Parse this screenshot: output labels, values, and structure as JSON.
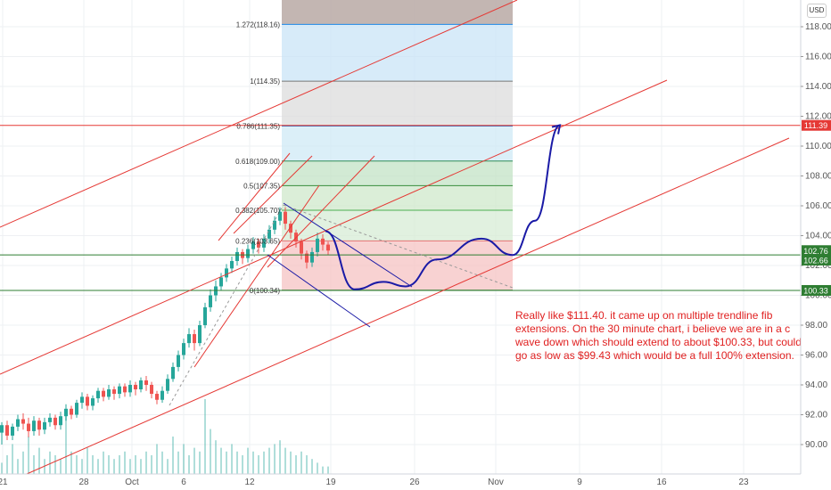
{
  "currency": "USD",
  "note_lines": [
    "Really like $111.40. it came up on multiple trendline fib",
    "extensions. On the 30 minute chart, i believe we are in a c",
    "wave down which should extend to about $100.33, but could",
    "go as low as $99.43 which would be a full 100% extension."
  ],
  "colors": {
    "red": "#e53935",
    "green": "#2e7d32",
    "blue": "#1a1aa6",
    "grid": "#eef0f3",
    "candle_up": "#26a69a",
    "candle_down": "#ef5350"
  },
  "chart_data": {
    "type": "candlestick",
    "y_range": [
      88.5,
      119.5
    ],
    "y_ticks": [
      90,
      92,
      94,
      96,
      98,
      100,
      102,
      104,
      106,
      108,
      110,
      112,
      114,
      116,
      118
    ],
    "y_tick_labels": [
      "90.00",
      "92.00",
      "94.00",
      "96.00",
      "98.00",
      "100.00",
      "102.00",
      "104.00",
      "106.00",
      "108.00",
      "110.00",
      "112.00",
      "114.00",
      "116.00",
      "118.00"
    ],
    "x_ticks": [
      "21",
      "28",
      "Oct",
      "6",
      "12",
      "19",
      "26",
      "Nov",
      "9",
      "16",
      "23"
    ],
    "price_labels": [
      {
        "label": "111.39",
        "value": 111.39,
        "color": "#e53935"
      },
      {
        "label": "102.76",
        "value": 102.76,
        "color": "#2e7d32"
      },
      {
        "label": "102.66",
        "value": 102.66,
        "color": "#2e7d32"
      },
      {
        "label": "100.33",
        "value": 100.33,
        "color": "#2e7d32"
      }
    ],
    "fib_levels": [
      {
        "label": "0(100.34)",
        "value": 100.34,
        "fill": "#f6c3c3"
      },
      {
        "label": "0.236(103.65)",
        "value": 103.65,
        "fill": "#d7ecd5"
      },
      {
        "label": "0.382(105.70)",
        "value": 105.7,
        "fill": "#cfe8cb"
      },
      {
        "label": "0.5(107.35)",
        "value": 107.35,
        "fill": "#c3e3c5"
      },
      {
        "label": "0.618(109.00)",
        "value": 109.0,
        "fill": "#cfe9f6"
      },
      {
        "label": "0.786(111.35)",
        "value": 111.35,
        "fill": "#dcdcdc"
      },
      {
        "label": "1(114.35)",
        "value": 114.35,
        "fill": "#c9e4f7"
      },
      {
        "label": "1.272(118.16)",
        "value": 118.16,
        "fill": "#c7b9b5"
      }
    ],
    "projection_path": [
      [
        365,
        104.3
      ],
      [
        398,
        100.4
      ],
      [
        430,
        100.9
      ],
      [
        455,
        100.6
      ],
      [
        490,
        102.4
      ],
      [
        540,
        103.8
      ],
      [
        575,
        102.7
      ],
      [
        600,
        105
      ],
      [
        628,
        111.4
      ]
    ],
    "candles": [
      [
        2,
        90.8,
        91.3,
        90.0,
        91.5
      ],
      [
        8,
        91.3,
        90.6,
        90.3,
        91.6
      ],
      [
        14,
        90.6,
        91.2,
        90.3,
        91.4
      ],
      [
        20,
        91.2,
        91.7,
        90.9,
        92.0
      ],
      [
        26,
        91.7,
        91.4,
        91.0,
        92.1
      ],
      [
        32,
        91.4,
        90.9,
        90.5,
        91.8
      ],
      [
        38,
        90.9,
        91.6,
        90.6,
        91.9
      ],
      [
        44,
        91.6,
        91.0,
        90.6,
        91.8
      ],
      [
        50,
        91.0,
        91.5,
        90.7,
        91.8
      ],
      [
        56,
        91.5,
        91.8,
        91.2,
        92.1
      ],
      [
        62,
        91.8,
        91.3,
        91.0,
        92.0
      ],
      [
        68,
        91.3,
        91.9,
        91.0,
        92.2
      ],
      [
        74,
        91.9,
        92.4,
        91.6,
        92.7
      ],
      [
        80,
        92.4,
        92.0,
        91.7,
        92.6
      ],
      [
        86,
        92.0,
        92.8,
        91.8,
        93.0
      ],
      [
        92,
        92.8,
        93.2,
        92.4,
        93.5
      ],
      [
        98,
        93.2,
        92.6,
        92.3,
        93.4
      ],
      [
        104,
        92.6,
        93.1,
        92.3,
        93.3
      ],
      [
        110,
        93.1,
        93.6,
        92.8,
        93.8
      ],
      [
        116,
        93.6,
        93.2,
        92.9,
        93.8
      ],
      [
        122,
        93.2,
        93.7,
        93.0,
        94.0
      ],
      [
        128,
        93.7,
        93.4,
        93.0,
        93.9
      ],
      [
        134,
        93.4,
        93.9,
        93.1,
        94.1
      ],
      [
        140,
        93.9,
        93.5,
        93.2,
        94.1
      ],
      [
        146,
        93.5,
        94.0,
        93.2,
        94.3
      ],
      [
        152,
        94.0,
        93.7,
        93.3,
        94.2
      ],
      [
        158,
        93.7,
        94.3,
        93.5,
        94.5
      ],
      [
        164,
        94.3,
        94.0,
        93.6,
        94.6
      ],
      [
        170,
        94.0,
        93.4,
        93.1,
        94.2
      ],
      [
        176,
        93.4,
        93.0,
        92.7,
        93.6
      ],
      [
        182,
        93.0,
        93.6,
        92.8,
        93.9
      ],
      [
        188,
        93.6,
        94.4,
        93.4,
        94.7
      ],
      [
        194,
        94.4,
        95.2,
        94.2,
        95.5
      ],
      [
        200,
        95.2,
        96.0,
        94.9,
        96.3
      ],
      [
        206,
        96.0,
        96.8,
        95.7,
        97.1
      ],
      [
        212,
        96.8,
        97.4,
        96.5,
        97.8
      ],
      [
        218,
        97.4,
        96.8,
        96.3,
        97.7
      ],
      [
        224,
        96.8,
        98.0,
        96.6,
        98.3
      ],
      [
        230,
        98.0,
        99.2,
        97.8,
        99.5
      ],
      [
        236,
        99.2,
        100.0,
        98.9,
        100.4
      ],
      [
        242,
        100.0,
        100.6,
        99.6,
        101.0
      ],
      [
        248,
        100.6,
        101.2,
        100.3,
        101.5
      ],
      [
        254,
        101.2,
        101.8,
        100.9,
        102.1
      ],
      [
        260,
        101.8,
        102.3,
        101.5,
        102.6
      ],
      [
        266,
        102.3,
        102.9,
        102.0,
        103.2
      ],
      [
        272,
        102.9,
        102.5,
        102.1,
        103.1
      ],
      [
        278,
        102.5,
        103.1,
        102.2,
        103.4
      ],
      [
        284,
        103.1,
        103.6,
        102.8,
        103.9
      ],
      [
        290,
        103.6,
        103.2,
        102.8,
        103.8
      ],
      [
        296,
        103.2,
        103.8,
        102.9,
        104.1
      ],
      [
        302,
        103.8,
        104.4,
        103.5,
        104.7
      ],
      [
        308,
        104.4,
        105.0,
        104.1,
        105.3
      ],
      [
        314,
        105.0,
        105.6,
        104.7,
        105.9
      ],
      [
        320,
        105.6,
        104.8,
        104.4,
        105.9
      ],
      [
        326,
        104.8,
        104.2,
        103.8,
        105.0
      ],
      [
        332,
        104.2,
        103.6,
        103.2,
        104.4
      ],
      [
        338,
        103.6,
        102.8,
        102.4,
        103.8
      ],
      [
        344,
        102.8,
        102.2,
        101.8,
        103.0
      ],
      [
        350,
        102.2,
        102.9,
        101.9,
        103.2
      ],
      [
        356,
        102.9,
        103.8,
        102.6,
        104.2
      ],
      [
        362,
        103.8,
        103.4,
        103.0,
        104.1
      ],
      [
        368,
        103.4,
        103.0,
        102.7,
        103.6
      ]
    ],
    "volumes": [
      [
        2,
        3
      ],
      [
        8,
        5
      ],
      [
        14,
        8
      ],
      [
        20,
        4
      ],
      [
        26,
        6
      ],
      [
        32,
        10
      ],
      [
        38,
        5
      ],
      [
        44,
        7
      ],
      [
        50,
        4
      ],
      [
        56,
        6
      ],
      [
        62,
        5
      ],
      [
        68,
        4
      ],
      [
        74,
        16
      ],
      [
        80,
        6
      ],
      [
        86,
        5
      ],
      [
        92,
        4
      ],
      [
        98,
        7
      ],
      [
        104,
        5
      ],
      [
        110,
        4
      ],
      [
        116,
        6
      ],
      [
        122,
        5
      ],
      [
        128,
        4
      ],
      [
        134,
        5
      ],
      [
        140,
        6
      ],
      [
        146,
        4
      ],
      [
        152,
        5
      ],
      [
        158,
        4
      ],
      [
        164,
        6
      ],
      [
        170,
        5
      ],
      [
        176,
        8
      ],
      [
        182,
        6
      ],
      [
        188,
        4
      ],
      [
        194,
        10
      ],
      [
        200,
        6
      ],
      [
        206,
        8
      ],
      [
        212,
        5
      ],
      [
        218,
        7
      ],
      [
        224,
        6
      ],
      [
        230,
        20
      ],
      [
        236,
        12
      ],
      [
        242,
        9
      ],
      [
        248,
        7
      ],
      [
        254,
        6
      ],
      [
        260,
        8
      ],
      [
        266,
        6
      ],
      [
        272,
        5
      ],
      [
        278,
        7
      ],
      [
        284,
        6
      ],
      [
        290,
        5
      ],
      [
        296,
        6
      ],
      [
        302,
        7
      ],
      [
        308,
        8
      ],
      [
        314,
        9
      ],
      [
        320,
        7
      ],
      [
        326,
        6
      ],
      [
        332,
        5
      ],
      [
        338,
        6
      ],
      [
        344,
        5
      ],
      [
        350,
        4
      ],
      [
        356,
        3
      ],
      [
        362,
        2
      ],
      [
        368,
        2
      ]
    ]
  }
}
